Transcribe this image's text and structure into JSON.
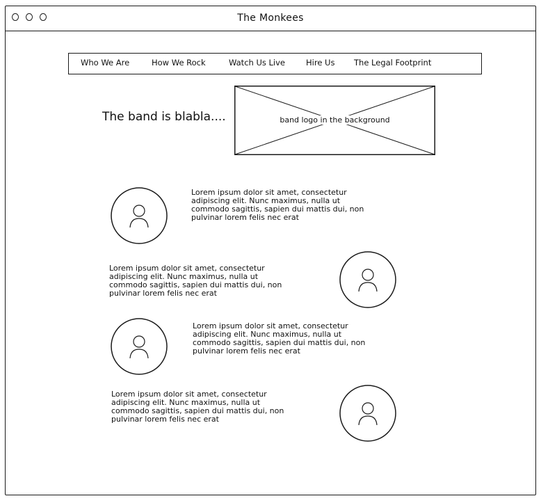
{
  "window": {
    "title": "The Monkees"
  },
  "nav": {
    "items": [
      {
        "label": "Who We Are"
      },
      {
        "label": "How We Rock"
      },
      {
        "label": "Watch Us Live"
      },
      {
        "label": "Hire Us"
      },
      {
        "label": "The Legal Footprint"
      }
    ]
  },
  "hero": {
    "text": "The band is blabla....",
    "logo_caption": "band logo in the background"
  },
  "members": [
    {
      "bio": "Lorem ipsum dolor sit amet, consectetur adipiscing elit. Nunc maximus, nulla ut commodo sagittis, sapien dui mattis dui, non pulvinar lorem felis nec erat",
      "avatar_icon": "user-avatar-icon"
    },
    {
      "bio": "Lorem ipsum dolor sit amet, consectetur adipiscing elit. Nunc maximus, nulla ut commodo sagittis, sapien dui mattis dui, non pulvinar lorem felis nec erat",
      "avatar_icon": "user-avatar-icon"
    },
    {
      "bio": "Lorem ipsum dolor sit amet, consectetur adipiscing elit. Nunc maximus, nulla ut commodo sagittis, sapien dui mattis dui, non pulvinar lorem felis nec erat",
      "avatar_icon": "user-avatar-icon"
    },
    {
      "bio": "Lorem ipsum dolor sit amet, consectetur adipiscing elit. Nunc maximus, nulla ut commodo sagittis, sapien dui mattis dui, non pulvinar lorem felis nec erat",
      "avatar_icon": "user-avatar-icon"
    }
  ]
}
